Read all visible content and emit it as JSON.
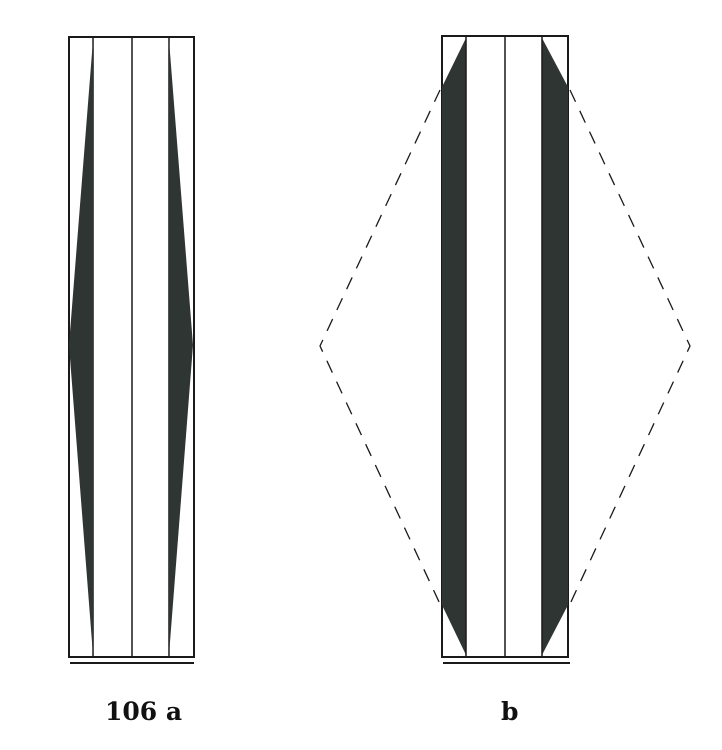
{
  "figure": {
    "panels": [
      {
        "id": "a",
        "caption": "106 a"
      },
      {
        "id": "b",
        "caption": "b"
      }
    ],
    "colors": {
      "ink": "#1a1a1a",
      "fill": "#2f3533",
      "paper": "#ffffff"
    }
  }
}
